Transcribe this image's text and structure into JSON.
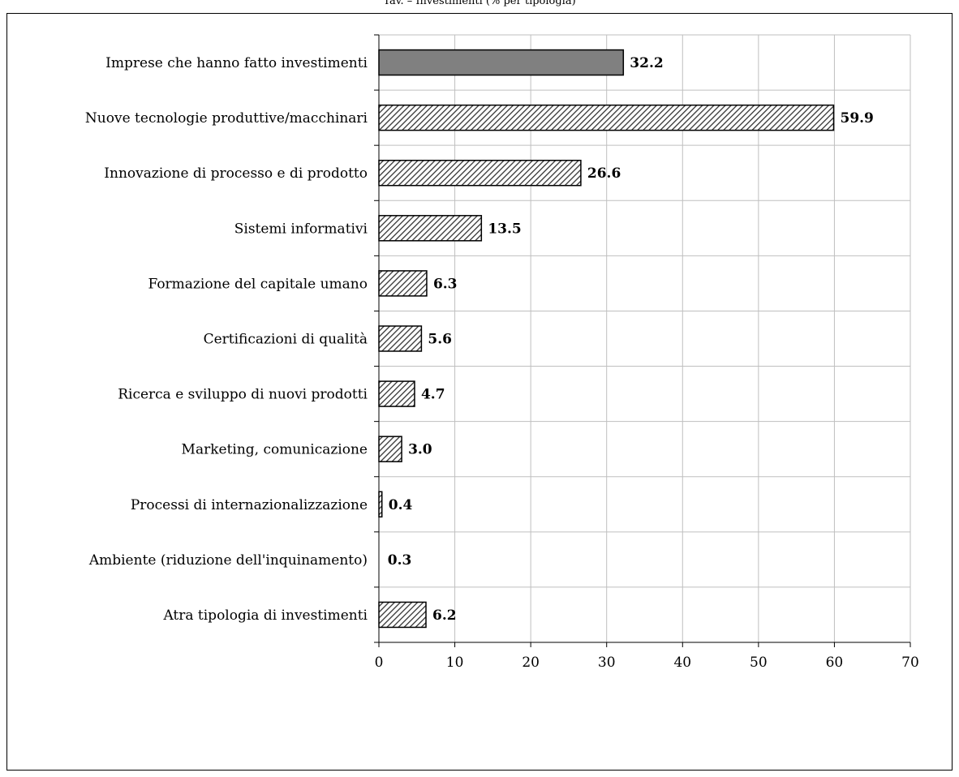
{
  "top_caption": "Tav. – Investimenti (% per tipologia)",
  "chart_data": {
    "type": "bar",
    "orientation": "horizontal",
    "title": "",
    "xlabel": "",
    "ylabel": "",
    "xlim": [
      0,
      70
    ],
    "xticks": [
      0,
      10,
      20,
      30,
      40,
      50,
      60,
      70
    ],
    "grid": true,
    "legend": "none",
    "categories": [
      "Imprese che hanno fatto investimenti",
      "Nuove tecnologie produttive/macchinari",
      "Innovazione di processo e di prodotto",
      "Sistemi informativi",
      "Formazione del capitale umano",
      "Certificazioni di qualità",
      "Ricerca e sviluppo di nuovi prodotti",
      "Marketing, comunicazione",
      "Processi di internazionalizzazione",
      "Ambiente (riduzione dell'inquinamento)",
      "Atra tipologia di investimenti"
    ],
    "values": [
      32.2,
      59.9,
      26.6,
      13.5,
      6.3,
      5.6,
      4.7,
      3.0,
      0.4,
      0.3,
      6.2
    ],
    "value_labels": [
      "32.2",
      "59.9",
      "26.6",
      "13.5",
      "6.3",
      "5.6",
      "4.7",
      "3.0",
      "0.4",
      "0.3",
      "6.2"
    ],
    "bar_styles": [
      "solid",
      "hatched",
      "hatched",
      "hatched",
      "hatched",
      "hatched",
      "hatched",
      "hatched",
      "hatched",
      "hatched",
      "hatched"
    ],
    "colors": {
      "solid_fill": "#808080",
      "hatch_line": "#333333",
      "hatch_bg": "#ffffff",
      "bar_stroke": "#000000",
      "grid": "#bfbfbf",
      "axis": "#000000"
    }
  }
}
